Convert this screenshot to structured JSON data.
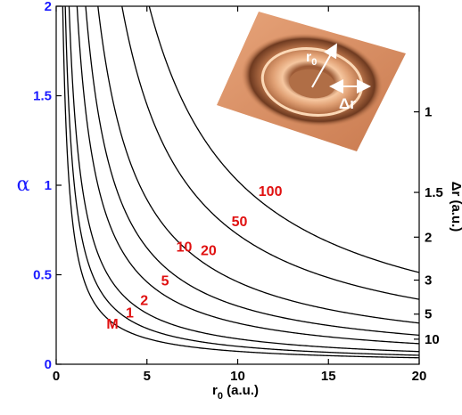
{
  "chart_data": {
    "type": "line",
    "title": "",
    "xlabel": "r",
    "xlabel_sub": "0",
    "xlabel_unit": " (a.u.)",
    "ylabel": "α",
    "ylabel_color": "#1a1aff",
    "right_axis_label": "Δr (a.u.)",
    "xlim": [
      0,
      20
    ],
    "ylim": [
      0,
      2
    ],
    "x_ticks": [
      0,
      5,
      10,
      15,
      20
    ],
    "x_tick_labels": [
      "0",
      "5",
      "10",
      "15",
      "20"
    ],
    "y_ticks": [
      0,
      0.5,
      1,
      1.5,
      2
    ],
    "y_tick_labels": [
      "0",
      "0.5",
      "1",
      "1.5",
      "2"
    ],
    "y_tick_color": "#1a1aff",
    "right_ticks": [
      {
        "label": "1",
        "alpha": 1.41
      },
      {
        "label": "1.5",
        "alpha": 0.96
      },
      {
        "label": "2",
        "alpha": 0.71
      },
      {
        "label": "3",
        "alpha": 0.47
      },
      {
        "label": "5",
        "alpha": 0.28
      },
      {
        "label": "10",
        "alpha": 0.14
      }
    ],
    "curve_color": "#000000",
    "label_color": "#e01010",
    "series": [
      {
        "name": "M",
        "k": 0.72
      },
      {
        "name": "1",
        "k": 1.0
      },
      {
        "name": "2",
        "k": 1.42
      },
      {
        "name": "5",
        "k": 2.3
      },
      {
        "name": "10",
        "k": 3.25
      },
      {
        "name": "20",
        "k": 4.6
      },
      {
        "name": "50",
        "k": 7.25
      },
      {
        "name": "100",
        "k": 10.25
      }
    ],
    "series_label_positions": [
      {
        "name": "M",
        "x": 3.1,
        "y": 0.2
      },
      {
        "name": "1",
        "x": 4.05,
        "y": 0.26
      },
      {
        "name": "2",
        "x": 4.85,
        "y": 0.33
      },
      {
        "name": "5",
        "x": 6.0,
        "y": 0.44
      },
      {
        "name": "10",
        "x": 7.05,
        "y": 0.63
      },
      {
        "name": "20",
        "x": 8.4,
        "y": 0.61
      },
      {
        "name": "50",
        "x": 10.1,
        "y": 0.77
      },
      {
        "name": "100",
        "x": 11.8,
        "y": 0.94
      }
    ]
  },
  "inset": {
    "label_r0": "r",
    "label_r0_sub": "0",
    "label_dr": "Δr",
    "ring_color": "#e8a070",
    "background_color": "#d98a5c"
  }
}
